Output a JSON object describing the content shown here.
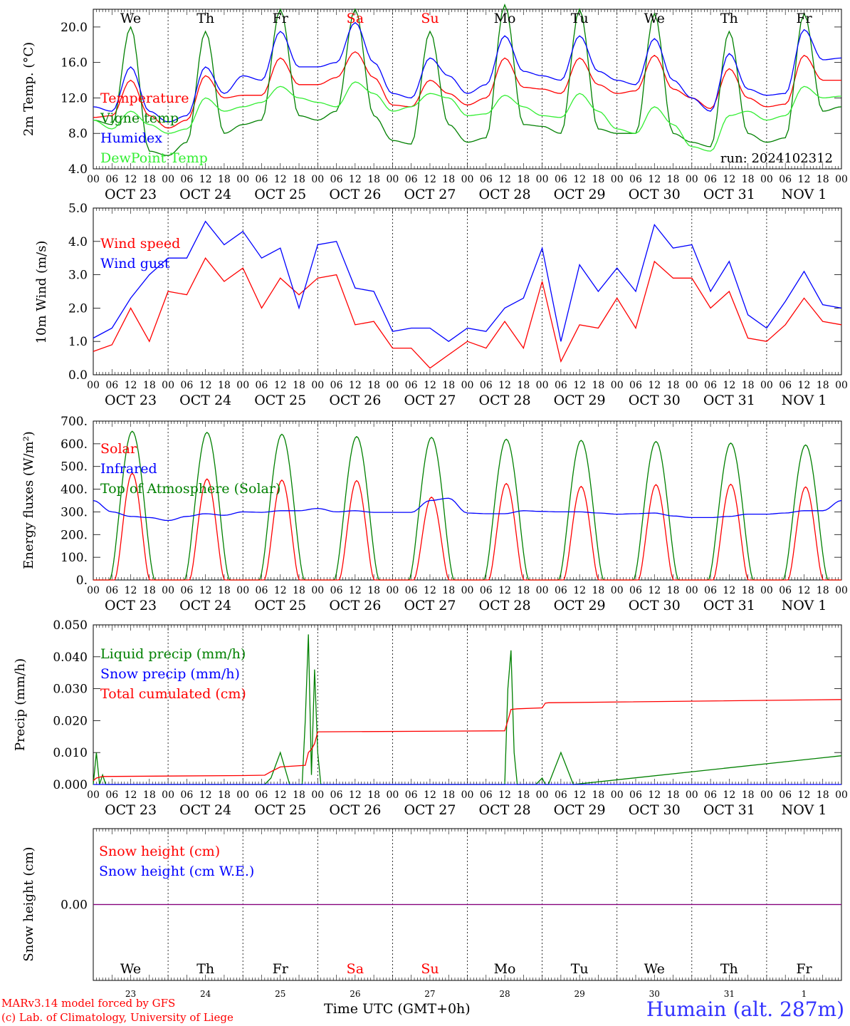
{
  "chart_data": [
    {
      "type": "line",
      "ylabel": "2m Temp. (°C)",
      "ylim": [
        4.0,
        22.0
      ],
      "yticks": [
        "4.0",
        "8.0",
        "12.0",
        "16.0",
        "20.0"
      ],
      "run_label": "run: 2024102312",
      "day_labels": [
        {
          "text": "We",
          "color": "#000000"
        },
        {
          "text": "Th",
          "color": "#000000"
        },
        {
          "text": "Fr",
          "color": "#000000"
        },
        {
          "text": "Sa",
          "color": "#ff0000"
        },
        {
          "text": "Su",
          "color": "#ff0000"
        },
        {
          "text": "Mo",
          "color": "#000000"
        },
        {
          "text": "Tu",
          "color": "#000000"
        },
        {
          "text": "We",
          "color": "#000000"
        },
        {
          "text": "Th",
          "color": "#000000"
        },
        {
          "text": "Fr",
          "color": "#000000"
        }
      ],
      "x_hours": [
        0,
        6,
        12,
        18,
        24,
        30,
        36,
        42,
        48,
        54,
        60,
        66,
        72,
        78,
        84,
        90,
        96,
        102,
        108,
        114,
        120,
        126,
        132,
        138,
        144,
        150,
        156,
        162,
        168,
        174,
        180,
        186,
        192,
        198,
        204,
        210,
        216,
        222,
        228,
        234,
        240
      ],
      "series": [
        {
          "name": "Temperature",
          "color": "#ff0000",
          "values": [
            9.8,
            10.0,
            14.0,
            10.0,
            8.6,
            9.5,
            14.5,
            12.0,
            12.3,
            12.3,
            16.5,
            13.5,
            13.5,
            14.3,
            17.2,
            14.3,
            11.2,
            11.0,
            14.0,
            12.5,
            11.2,
            12.0,
            16.5,
            13.2,
            13.0,
            12.5,
            16.5,
            13.5,
            12.5,
            12.8,
            16.8,
            13.0,
            12.0,
            10.8,
            15.3,
            12.0,
            11.0,
            11.3,
            16.8,
            14.0,
            14.0
          ]
        },
        {
          "name": "Vigne temp",
          "color": "#008000",
          "values": [
            9.5,
            9.0,
            20.0,
            6.0,
            5.5,
            7.0,
            19.5,
            8.0,
            9.0,
            9.5,
            22.0,
            10.0,
            9.5,
            10.5,
            22.0,
            10.0,
            7.2,
            6.8,
            19.5,
            9.0,
            7.0,
            7.5,
            22.5,
            9.0,
            8.8,
            8.0,
            22.0,
            8.5,
            8.0,
            8.0,
            21.5,
            8.0,
            7.0,
            6.5,
            19.5,
            8.0,
            7.0,
            7.5,
            21.5,
            10.5,
            11.0
          ]
        },
        {
          "name": "Humidex",
          "color": "#0000ff",
          "values": [
            11.0,
            10.5,
            15.5,
            10.5,
            9.3,
            10.0,
            15.5,
            12.5,
            14.5,
            14.0,
            19.5,
            15.5,
            15.5,
            16.0,
            20.5,
            16.0,
            12.5,
            12.0,
            16.5,
            14.5,
            12.5,
            13.5,
            19.0,
            15.0,
            14.5,
            14.0,
            19.0,
            15.0,
            14.0,
            13.5,
            18.7,
            14.0,
            12.0,
            10.5,
            17.0,
            13.0,
            12.3,
            12.5,
            19.7,
            16.3,
            16.5
          ]
        },
        {
          "name": "DewPoint Temp",
          "color": "#33ee33",
          "values": [
            9.5,
            8.5,
            10.5,
            9.0,
            8.0,
            8.5,
            12.0,
            10.5,
            11.0,
            11.5,
            13.3,
            12.0,
            11.5,
            11.0,
            13.8,
            12.5,
            10.5,
            11.0,
            12.5,
            12.0,
            10.0,
            10.2,
            12.3,
            11.0,
            10.0,
            9.8,
            12.5,
            10.5,
            8.5,
            8.0,
            11.0,
            9.0,
            6.5,
            6.0,
            10.0,
            10.5,
            9.5,
            10.0,
            13.3,
            12.0,
            12.2
          ]
        }
      ]
    },
    {
      "type": "line",
      "ylabel": "10m Wind (m/s)",
      "ylim": [
        0.0,
        5.0
      ],
      "yticks": [
        "0.0",
        "1.0",
        "2.0",
        "3.0",
        "4.0",
        "5.0"
      ],
      "x_hours": [
        0,
        6,
        12,
        18,
        24,
        30,
        36,
        42,
        48,
        54,
        60,
        66,
        72,
        78,
        84,
        90,
        96,
        102,
        108,
        114,
        120,
        126,
        132,
        138,
        144,
        150,
        156,
        162,
        168,
        174,
        180,
        186,
        192,
        198,
        204,
        210,
        216,
        222,
        228,
        234,
        240
      ],
      "series": [
        {
          "name": "Wind speed",
          "color": "#ff0000",
          "values": [
            0.7,
            0.9,
            2.0,
            1.0,
            2.5,
            2.4,
            3.5,
            2.8,
            3.2,
            2.0,
            2.9,
            2.4,
            2.9,
            3.0,
            1.5,
            1.6,
            0.8,
            0.8,
            0.2,
            0.6,
            1.0,
            0.8,
            1.6,
            0.8,
            2.8,
            0.4,
            1.5,
            1.4,
            2.3,
            1.4,
            3.4,
            2.9,
            2.9,
            2.0,
            2.5,
            1.1,
            1.0,
            1.5,
            2.3,
            1.6,
            1.5
          ]
        },
        {
          "name": "Wind gust",
          "color": "#0000ff",
          "values": [
            1.1,
            1.4,
            2.3,
            3.0,
            3.5,
            3.5,
            4.6,
            3.9,
            4.3,
            3.5,
            3.8,
            2.0,
            3.9,
            4.0,
            2.6,
            2.5,
            1.3,
            1.4,
            1.4,
            1.0,
            1.4,
            1.3,
            2.0,
            2.3,
            3.8,
            1.0,
            3.3,
            2.5,
            3.2,
            2.5,
            4.5,
            3.8,
            3.9,
            2.5,
            3.4,
            1.8,
            1.4,
            2.2,
            3.1,
            2.1,
            2.0
          ]
        }
      ]
    },
    {
      "type": "line",
      "ylabel": "Energy fluxes (W/m²)",
      "ylim": [
        0,
        700
      ],
      "yticks": [
        "0.",
        "100.",
        "200.",
        "300.",
        "400.",
        "500.",
        "600.",
        "700."
      ],
      "daily_peaks": {
        "solar": [
          470,
          445,
          440,
          438,
          365,
          425,
          412,
          420,
          422,
          410
        ],
        "top_of_atmosphere": [
          655,
          650,
          642,
          632,
          628,
          620,
          615,
          610,
          603,
          595
        ]
      },
      "series": [
        {
          "name": "Solar",
          "color": "#ff0000"
        },
        {
          "name": "Infrared",
          "color": "#0000ff",
          "x_hours": [
            0,
            6,
            12,
            18,
            24,
            30,
            36,
            42,
            48,
            54,
            60,
            66,
            72,
            78,
            84,
            90,
            96,
            102,
            108,
            114,
            120,
            126,
            132,
            138,
            144,
            150,
            156,
            162,
            168,
            174,
            180,
            186,
            192,
            198,
            204,
            210,
            216,
            222,
            228,
            234,
            240
          ],
          "values": [
            350,
            300,
            280,
            275,
            262,
            280,
            292,
            285,
            300,
            298,
            305,
            305,
            315,
            300,
            305,
            298,
            298,
            298,
            350,
            360,
            295,
            292,
            292,
            305,
            302,
            300,
            300,
            295,
            290,
            292,
            295,
            282,
            275,
            275,
            280,
            290,
            290,
            295,
            305,
            305,
            350
          ]
        },
        {
          "name": "Top of Atmosphere (Solar)",
          "color": "#008000"
        }
      ]
    },
    {
      "type": "line",
      "ylabel": "Precip (mm/h)",
      "ylim": [
        0.0,
        0.05
      ],
      "yticks": [
        "0.000",
        "0.010",
        "0.020",
        "0.030",
        "0.040",
        "0.050"
      ],
      "series": [
        {
          "name": "Liquid precip (mm/h)",
          "color": "#008000",
          "x_hours": [
            0,
            1,
            2,
            3,
            4,
            5,
            55,
            57,
            60,
            63,
            67,
            68,
            69,
            70,
            71,
            72,
            73,
            74,
            75,
            76,
            132,
            133,
            134,
            135,
            136,
            137,
            142,
            143,
            144,
            145,
            146,
            150,
            154,
            240
          ],
          "values": [
            0.0,
            0.01,
            0.0,
            0.003,
            0.0,
            0.0,
            0.0,
            0.002,
            0.01,
            0.0,
            0.0,
            0.02,
            0.047,
            0.003,
            0.036,
            0.01,
            0.0,
            0.0,
            0.0,
            0.0,
            0.0,
            0.03,
            0.042,
            0.01,
            0.0,
            0.0,
            0.0,
            0.001,
            0.002,
            0.0,
            0.0,
            0.01,
            0.0,
            0.009
          ]
        },
        {
          "name": "Snow precip (mm/h)",
          "color": "#0000ff",
          "x_hours": [
            0,
            240
          ],
          "values": [
            0.0,
            0.0
          ]
        },
        {
          "name": "Total cumulated (cm)",
          "color": "#ff0000",
          "x_hours": [
            0,
            1,
            3,
            48,
            55,
            57,
            60,
            68,
            69,
            70,
            71,
            72,
            73,
            132,
            133,
            134,
            136,
            144,
            145,
            146,
            240
          ],
          "values": [
            0.0012,
            0.002,
            0.0025,
            0.0028,
            0.0029,
            0.004,
            0.0055,
            0.006,
            0.01,
            0.011,
            0.0128,
            0.0165,
            0.0165,
            0.0168,
            0.02,
            0.0235,
            0.0237,
            0.024,
            0.0255,
            0.0256,
            0.0266
          ]
        }
      ]
    },
    {
      "type": "line",
      "ylabel": "Snow height (cm)",
      "yticks": [
        "0.00"
      ],
      "series": [
        {
          "name": "Snow height (cm)",
          "color": "#ff0000",
          "values": [
            0.0,
            0.0
          ]
        },
        {
          "name": "Snow height (cm W.E.)",
          "color": "#0000ff",
          "values": [
            0.0,
            0.0
          ]
        }
      ],
      "day_labels": [
        {
          "text": "We",
          "color": "#000000"
        },
        {
          "text": "Th",
          "color": "#000000"
        },
        {
          "text": "Fr",
          "color": "#000000"
        },
        {
          "text": "Sa",
          "color": "#ff0000"
        },
        {
          "text": "Su",
          "color": "#ff0000"
        },
        {
          "text": "Mo",
          "color": "#000000"
        },
        {
          "text": "Tu",
          "color": "#000000"
        },
        {
          "text": "We",
          "color": "#000000"
        },
        {
          "text": "Th",
          "color": "#000000"
        },
        {
          "text": "Fr",
          "color": "#000000"
        }
      ],
      "day_numbers": [
        "23",
        "24",
        "25",
        "26",
        "27",
        "28",
        "29",
        "30",
        "31",
        "1"
      ]
    }
  ],
  "x_axis": {
    "hour_ticks": [
      "00",
      "06",
      "12",
      "18"
    ],
    "date_labels": [
      "OCT 23",
      "OCT 24",
      "OCT 25",
      "OCT 26",
      "OCT 27",
      "OCT 28",
      "OCT 29",
      "OCT 30",
      "OCT 31",
      "NOV  1"
    ]
  },
  "footer": {
    "model_line": "MARv3.14 model forced by GFS",
    "credit_line": "(c) Lab. of Climatology, University of Liege",
    "time_axis_label": "Time UTC (GMT+0h)",
    "station": "Humain (alt. 287m)"
  }
}
